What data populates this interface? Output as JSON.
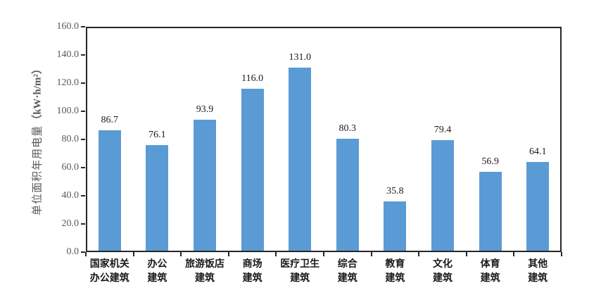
{
  "chart_data": {
    "type": "bar",
    "ylabel_text": "单位面积年用电量",
    "ylabel_unit": "（kW·h/m²）",
    "categories": [
      [
        "国家机关",
        "办公建筑"
      ],
      [
        "办公",
        "建筑"
      ],
      [
        "旅游饭店",
        "建筑"
      ],
      [
        "商场",
        "建筑"
      ],
      [
        "医疗卫生",
        "建筑"
      ],
      [
        "综合",
        "建筑"
      ],
      [
        "教育",
        "建筑"
      ],
      [
        "文化",
        "建筑"
      ],
      [
        "体育",
        "建筑"
      ],
      [
        "其他",
        "建筑"
      ]
    ],
    "values": [
      86.7,
      76.1,
      93.9,
      116.0,
      131.0,
      80.3,
      35.8,
      79.4,
      56.9,
      64.1
    ],
    "value_labels": [
      "86.7",
      "76.1",
      "93.9",
      "116.0",
      "131.0",
      "80.3",
      "35.8",
      "79.4",
      "56.9",
      "64.1"
    ],
    "ylim": [
      0,
      160
    ],
    "ytick_step": 20,
    "ytick_labels": [
      "0.0",
      "20.0",
      "40.0",
      "60.0",
      "80.0",
      "100.0",
      "120.0",
      "140.0",
      "160.0"
    ],
    "grid": "off",
    "legend": "none",
    "bar_color": "#5B9BD5",
    "axis_color": "#262626",
    "tick_label_color": "#595959",
    "data_label_color": "#1a1a1a"
  }
}
